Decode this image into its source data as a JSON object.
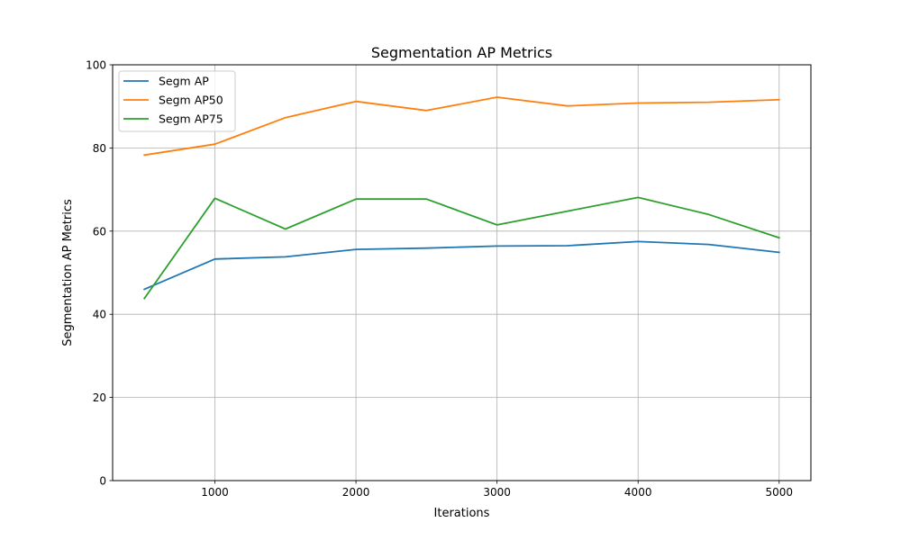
{
  "chart_data": {
    "type": "line",
    "title": "Segmentation AP Metrics",
    "xlabel": "Iterations",
    "ylabel": "Segmentation AP Metrics",
    "x": [
      500,
      1000,
      1500,
      2000,
      2500,
      3000,
      3500,
      4000,
      4500,
      5000
    ],
    "xlim": [
      275,
      5225
    ],
    "ylim": [
      0,
      100
    ],
    "xticks": [
      1000,
      2000,
      3000,
      4000,
      5000
    ],
    "yticks": [
      0,
      20,
      40,
      60,
      80,
      100
    ],
    "xtick_labels": [
      "1000",
      "2000",
      "3000",
      "4000",
      "5000"
    ],
    "ytick_labels": [
      "0",
      "20",
      "40",
      "60",
      "80",
      "100"
    ],
    "grid": true,
    "legend_position": "top-left",
    "series": [
      {
        "name": "Segm AP",
        "color": "#1f77b4",
        "values": [
          46.0,
          53.3,
          53.8,
          55.6,
          55.9,
          56.4,
          56.5,
          57.5,
          56.8,
          54.9
        ]
      },
      {
        "name": "Segm AP50",
        "color": "#ff7f0e",
        "values": [
          78.3,
          80.9,
          87.3,
          91.2,
          89.0,
          92.2,
          90.1,
          90.8,
          91.0,
          91.6
        ]
      },
      {
        "name": "Segm AP75",
        "color": "#2ca02c",
        "values": [
          43.8,
          67.9,
          60.5,
          67.7,
          67.7,
          61.5,
          64.8,
          68.1,
          64.0,
          58.4
        ]
      }
    ]
  }
}
